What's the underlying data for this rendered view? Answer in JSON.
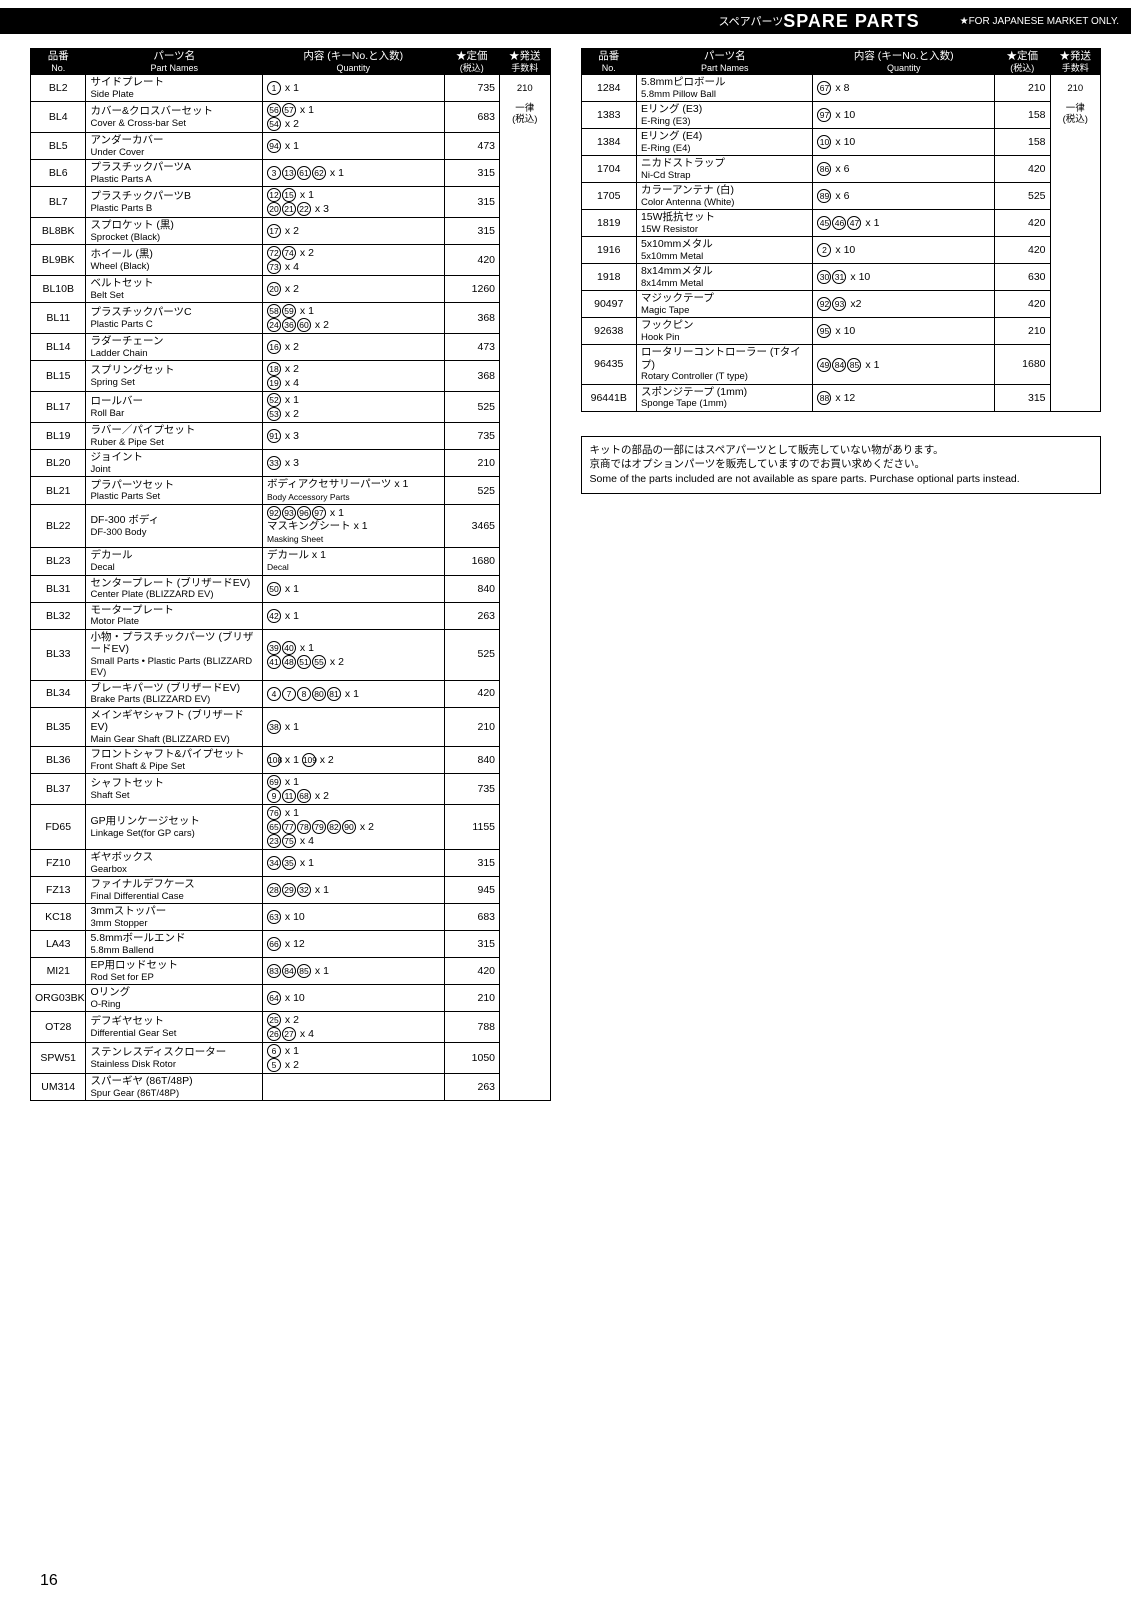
{
  "title": {
    "jp": "スペアパーツ",
    "en": "SPARE PARTS",
    "note": "FOR JAPANESE MARKET ONLY."
  },
  "header": {
    "no_jp": "品番",
    "no_en": "No.",
    "name_jp": "パーツ名",
    "name_en": "Part Names",
    "qty_jp": "内容 (キーNo.と入数)",
    "qty_en": "Quantity",
    "price_jp": "★定価",
    "price_en": "(税込)",
    "ship_jp": "★発送",
    "ship_en": "手数料"
  },
  "ship1": "210",
  "ship2": "一律",
  "ship3": "(税込)",
  "left": [
    {
      "no": "BL2",
      "jp": "サイドプレート",
      "en": "Side Plate",
      "circ": [
        "1"
      ],
      "qtxt": " x 1",
      "price": "735"
    },
    {
      "no": "BL4",
      "jp": "カバー&クロスバーセット",
      "en": "Cover & Cross-bar Set",
      "circ": [
        "56",
        "57"
      ],
      "qtxt": " x 1",
      "circ2": [
        "54"
      ],
      "qtxt2": " x 2",
      "price": "683"
    },
    {
      "no": "BL5",
      "jp": "アンダーカバー",
      "en": "Under Cover",
      "circ": [
        "94"
      ],
      "qtxt": " x 1",
      "price": "473"
    },
    {
      "no": "BL6",
      "jp": "プラスチックパーツA",
      "en": "Plastic Parts A",
      "circ": [
        "3",
        "13",
        "61",
        "62"
      ],
      "qtxt": " x 1",
      "price": "315"
    },
    {
      "no": "BL7",
      "jp": "プラスチックパーツB",
      "en": "Plastic Parts B",
      "circ": [
        "12",
        "15"
      ],
      "qtxt": " x 1",
      "circ2": [
        "20",
        "21",
        "22"
      ],
      "qtxt2": " x 3",
      "price": "315"
    },
    {
      "no": "BL8BK",
      "jp": "スプロケット (黒)",
      "en": "Sprocket (Black)",
      "circ": [
        "17"
      ],
      "qtxt": " x 2",
      "price": "315"
    },
    {
      "no": "BL9BK",
      "jp": "ホイール (黒)",
      "en": "Wheel (Black)",
      "circ": [
        "72",
        "74"
      ],
      "qtxt": " x 2",
      "circ2": [
        "73"
      ],
      "qtxt2": " x 4",
      "price": "420"
    },
    {
      "no": "BL10B",
      "jp": "ベルトセット",
      "en": "Belt Set",
      "circ": [
        "20"
      ],
      "qtxt": " x 2",
      "price": "1260"
    },
    {
      "no": "BL11",
      "jp": "プラスチックパーツC",
      "en": "Plastic Parts C",
      "circ": [
        "58",
        "59"
      ],
      "qtxt": " x 1",
      "circ2": [
        "24",
        "36",
        "60"
      ],
      "qtxt2": " x 2",
      "price": "368"
    },
    {
      "no": "BL14",
      "jp": "ラダーチェーン",
      "en": "Ladder Chain",
      "circ": [
        "16"
      ],
      "qtxt": " x 2",
      "price": "473"
    },
    {
      "no": "BL15",
      "jp": "スプリングセット",
      "en": "Spring Set",
      "circ": [
        "18"
      ],
      "qtxt": " x 2",
      "circ2": [
        "19"
      ],
      "qtxt2": " x 4",
      "price": "368"
    },
    {
      "no": "BL17",
      "jp": "ロールバー",
      "en": "Roll Bar",
      "circ": [
        "52"
      ],
      "qtxt": " x 1",
      "circ2": [
        "53"
      ],
      "qtxt2": " x 2",
      "price": "525"
    },
    {
      "no": "BL19",
      "jp": "ラバー／パイプセット",
      "en": "Ruber & Pipe Set",
      "circ": [
        "91"
      ],
      "qtxt": " x 3",
      "price": "735"
    },
    {
      "no": "BL20",
      "jp": "ジョイント",
      "en": "Joint",
      "circ": [
        "33"
      ],
      "qtxt": " x 3",
      "price": "210"
    },
    {
      "no": "BL21",
      "jp": "プラパーツセット",
      "en": "Plastic Parts Set",
      "qtxt_html": "ボディアクセサリーパーツ x 1<br><span style='font-size:8.5px'>Body Accessory Parts</span>",
      "price": "525"
    },
    {
      "no": "BL22",
      "jp": "DF-300 ボディ",
      "en": "DF-300 Body",
      "circ": [
        "92",
        "93",
        "96",
        "97"
      ],
      "qtxt": " x 1",
      "qtxt_html2": "マスキングシート x 1<br><span style='font-size:8.5px'>Masking Sheet</span>",
      "price": "3465"
    },
    {
      "no": "BL23",
      "jp": "デカール",
      "en": "Decal",
      "qtxt_html": "デカール x 1<br><span style='font-size:8.5px'>Decal</span>",
      "price": "1680"
    },
    {
      "no": "BL31",
      "jp": "センタープレート (ブリザードEV)",
      "en": "Center Plate (BLIZZARD EV)",
      "circ": [
        "50"
      ],
      "qtxt": " x 1",
      "price": "840"
    },
    {
      "no": "BL32",
      "jp": "モータープレート",
      "en": "Motor Plate",
      "circ": [
        "42"
      ],
      "qtxt": " x 1",
      "price": "263"
    },
    {
      "no": "BL33",
      "jp": "小物・プラスチックパーツ (ブリザードEV)",
      "en": "Small Parts • Plastic Parts (BLIZZARD EV)",
      "circ": [
        "39",
        "40"
      ],
      "qtxt": " x 1",
      "circ2": [
        "41",
        "48",
        "51",
        "55"
      ],
      "qtxt2": " x 2",
      "price": "525"
    },
    {
      "no": "BL34",
      "jp": "ブレーキパーツ (ブリザードEV)",
      "en": "Brake Parts (BLIZZARD EV)",
      "circ": [
        "4",
        "7",
        "8",
        "80",
        "81"
      ],
      "qtxt": " x 1",
      "price": "420"
    },
    {
      "no": "BL35",
      "jp": "メインギヤシャフト (ブリザードEV)",
      "en": "Main Gear Shaft (BLIZZARD EV)",
      "circ": [
        "38"
      ],
      "qtxt": " x 1",
      "price": "210"
    },
    {
      "no": "BL36",
      "jp": "フロントシャフト&パイプセット",
      "en": "Front Shaft & Pipe Set",
      "circ": [
        "108"
      ],
      "qtxt": " x 1 ",
      "circ2": [
        "109"
      ],
      "qtxt2": " x 2",
      "price": "840",
      "inline": true
    },
    {
      "no": "BL37",
      "jp": "シャフトセット",
      "en": "Shaft Set",
      "circ": [
        "69"
      ],
      "qtxt": " x 1",
      "circ2": [
        "9",
        "11",
        "68"
      ],
      "qtxt2": " x 2",
      "price": "735"
    },
    {
      "no": "FD65",
      "jp": "GP用リンケージセット",
      "en": "Linkage Set(for GP cars)",
      "circ": [
        "76"
      ],
      "qtxt": " x 1",
      "circ2": [
        "65",
        "77",
        "78",
        "79",
        "82",
        "90"
      ],
      "qtxt2": " x 2",
      "circ3": [
        "23",
        "75"
      ],
      "qtxt3": " x 4",
      "price": "1155"
    },
    {
      "no": "FZ10",
      "jp": "ギヤボックス",
      "en": "Gearbox",
      "circ": [
        "34",
        "35"
      ],
      "qtxt": " x 1",
      "price": "315"
    },
    {
      "no": "FZ13",
      "jp": "ファイナルデフケース",
      "en": "Final Differential Case",
      "circ": [
        "28",
        "29",
        "32"
      ],
      "qtxt": " x 1",
      "price": "945"
    },
    {
      "no": "KC18",
      "jp": "3mmストッパー",
      "en": "3mm Stopper",
      "circ": [
        "63"
      ],
      "qtxt": " x 10",
      "price": "683"
    },
    {
      "no": "LA43",
      "jp": "5.8mmボールエンド",
      "en": "5.8mm Ballend",
      "circ": [
        "66"
      ],
      "qtxt": " x 12",
      "price": "315"
    },
    {
      "no": "MI21",
      "jp": "EP用ロッドセット",
      "en": "Rod Set for EP",
      "circ": [
        "83",
        "84",
        "85"
      ],
      "qtxt": " x 1",
      "price": "420"
    },
    {
      "no": "ORG03BK",
      "jp": "Oリング",
      "en": "O-Ring",
      "circ": [
        "64"
      ],
      "qtxt": " x 10",
      "price": "210"
    },
    {
      "no": "OT28",
      "jp": "デフギヤセット",
      "en": "Differential Gear Set",
      "circ": [
        "25"
      ],
      "qtxt": " x 2",
      "circ2": [
        "26",
        "27"
      ],
      "qtxt2": " x 4",
      "price": "788"
    },
    {
      "no": "SPW51",
      "jp": "ステンレスディスクローター",
      "en": "Stainless Disk Rotor",
      "circ": [
        "6"
      ],
      "qtxt": " x 1",
      "circ2": [
        "5"
      ],
      "qtxt2": " x 2",
      "price": "1050"
    },
    {
      "no": "UM314",
      "jp": "スパーギヤ (86T/48P)",
      "en": "Spur Gear (86T/48P)",
      "qtxt": "",
      "price": "263"
    }
  ],
  "right": [
    {
      "no": "1284",
      "jp": "5.8mmピロボール",
      "en": "5.8mm Pillow Ball",
      "circ": [
        "67"
      ],
      "qtxt": " x 8",
      "price": "210"
    },
    {
      "no": "1383",
      "jp": "Eリング (E3)",
      "en": "E-Ring (E3)",
      "circ": [
        "97"
      ],
      "qtxt": " x 10",
      "price": "158"
    },
    {
      "no": "1384",
      "jp": "Eリング (E4)",
      "en": "E-Ring (E4)",
      "circ": [
        "10"
      ],
      "qtxt": " x 10",
      "price": "158"
    },
    {
      "no": "1704",
      "jp": "ニカドストラップ",
      "en": "Ni-Cd Strap",
      "circ": [
        "86"
      ],
      "qtxt": " x 6",
      "price": "420"
    },
    {
      "no": "1705",
      "jp": "カラーアンテナ (白)",
      "en": "Color Antenna (White)",
      "circ": [
        "89"
      ],
      "qtxt": " x 6",
      "price": "525"
    },
    {
      "no": "1819",
      "jp": "15W抵抗セット",
      "en": "15W Resistor",
      "circ": [
        "45",
        "46",
        "47"
      ],
      "qtxt": " x 1",
      "price": "420"
    },
    {
      "no": "1916",
      "jp": "5x10mmメタル",
      "en": "5x10mm Metal",
      "circ": [
        "2"
      ],
      "qtxt": " x 10",
      "price": "420"
    },
    {
      "no": "1918",
      "jp": "8x14mmメタル",
      "en": "8x14mm Metal",
      "circ": [
        "30",
        "31"
      ],
      "qtxt": " x 10",
      "price": "630"
    },
    {
      "no": "90497",
      "jp": "マジックテープ",
      "en": "Magic Tape",
      "circ": [
        "92",
        "93"
      ],
      "qtxt": " x2",
      "price": "420"
    },
    {
      "no": "92638",
      "jp": "フックピン",
      "en": "Hook Pin",
      "circ": [
        "95"
      ],
      "qtxt": " x 10",
      "price": "210"
    },
    {
      "no": "96435",
      "jp": "ロータリーコントローラー (Tタイプ)",
      "en": "Rotary Controller (T type)",
      "circ": [
        "49",
        "84",
        "85"
      ],
      "qtxt": " x 1",
      "price": "1680"
    },
    {
      "no": "96441B",
      "jp": "スポンジテープ (1mm)",
      "en": "Sponge Tape (1mm)",
      "circ": [
        "88"
      ],
      "qtxt": " x 12",
      "price": "315"
    }
  ],
  "note": {
    "jp1": "キットの部品の一部にはスペアパーツとして販売していない物があります。",
    "jp2": "京商ではオプションパーツを販売していますのでお買い求めください。",
    "en": "Some of the parts included are not available as spare parts.  Purchase optional parts instead."
  },
  "page": "16"
}
